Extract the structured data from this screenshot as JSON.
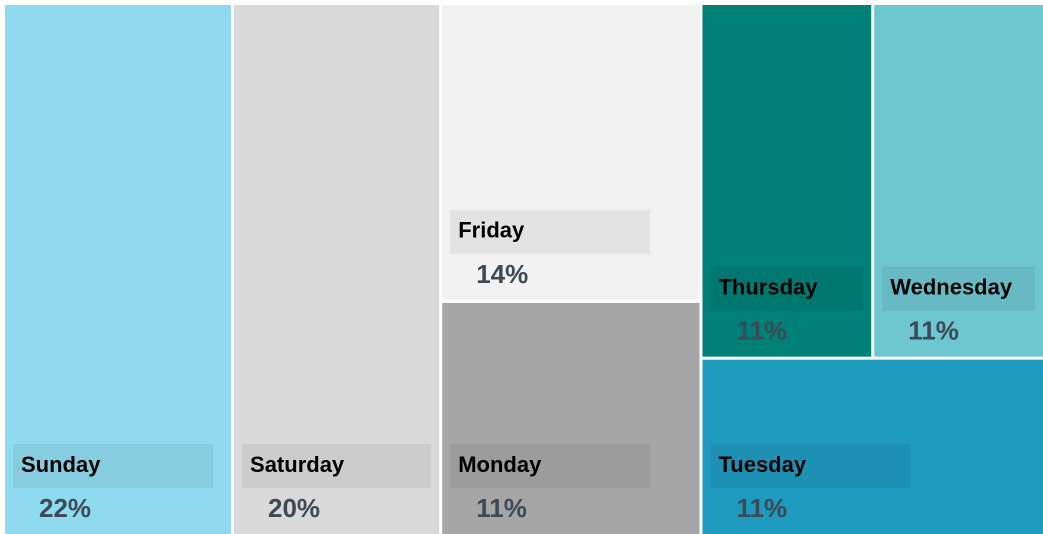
{
  "chart_data": {
    "type": "treemap",
    "categories": [
      "Sunday",
      "Saturday",
      "Friday",
      "Monday",
      "Thursday",
      "Wednesday",
      "Tuesday"
    ],
    "values": [
      22,
      20,
      14,
      11,
      11,
      11,
      11
    ],
    "value_labels": [
      "22%",
      "20%",
      "14%",
      "11%",
      "11%",
      "11%",
      "11%"
    ],
    "colors": [
      "#8fdaee",
      "#d9d9d9",
      "#f2f2f2",
      "#a6a6a6",
      "#008077",
      "#6ec6d0",
      "#1f9abf"
    ]
  }
}
